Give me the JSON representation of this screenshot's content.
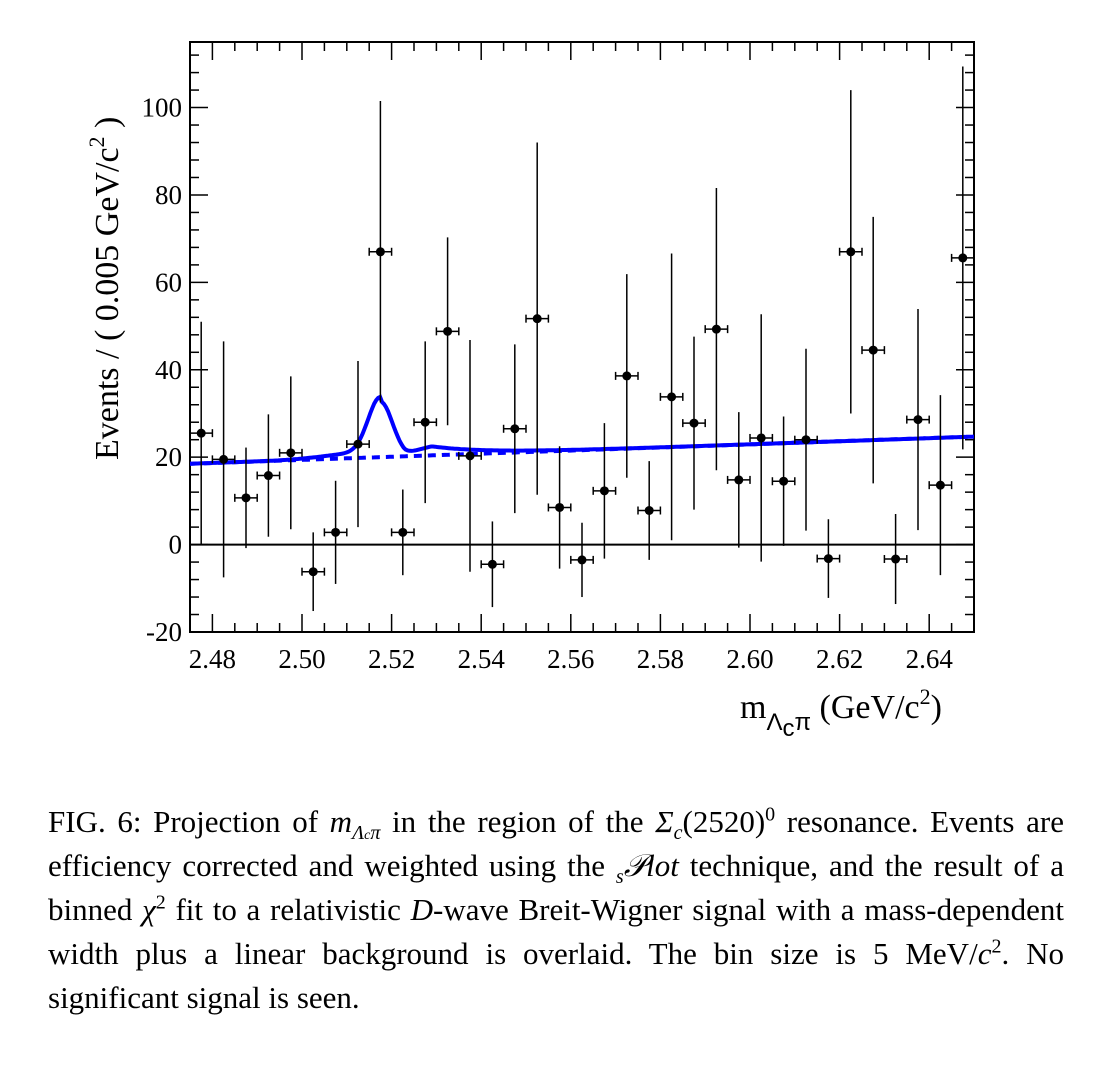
{
  "chart_data": {
    "type": "scatter",
    "ylabel": "Events / ( 0.005 GeV/c",
    "ylabel_sup": "2",
    "ylabel_end": " )",
    "xlabel_m": "m",
    "xlabel_sub": "Λ",
    "xlabel_subsub": "c",
    "xlabel_pi": "π",
    "xlabel_unit": " (GeV/c",
    "xlabel_sup": "2",
    "xlabel_end": ")",
    "xlim": [
      2.475,
      2.65
    ],
    "ylim": [
      -20,
      115
    ],
    "x_ticks": [
      "2.48",
      "2.50",
      "2.52",
      "2.54",
      "2.56",
      "2.58",
      "2.60",
      "2.62",
      "2.64"
    ],
    "x_tick_values": [
      2.48,
      2.5,
      2.52,
      2.54,
      2.56,
      2.58,
      2.6,
      2.62,
      2.64
    ],
    "y_ticks": [
      "-20",
      "0",
      "20",
      "40",
      "60",
      "80",
      "100"
    ],
    "y_tick_values": [
      -20,
      0,
      20,
      40,
      60,
      80,
      100
    ],
    "bin_width": 0.005,
    "points": [
      {
        "x": 2.4775,
        "y": 25.5,
        "err": 25.5
      },
      {
        "x": 2.4825,
        "y": 19.5,
        "err": 27.0
      },
      {
        "x": 2.4875,
        "y": 10.7,
        "err": 11.5
      },
      {
        "x": 2.4925,
        "y": 15.8,
        "err": 14.0
      },
      {
        "x": 2.4975,
        "y": 21.0,
        "err": 17.5
      },
      {
        "x": 2.5025,
        "y": -6.2,
        "err": 9.0
      },
      {
        "x": 2.5075,
        "y": 2.8,
        "err": 11.8
      },
      {
        "x": 2.5125,
        "y": 23.0,
        "err": 19.0
      },
      {
        "x": 2.5175,
        "y": 67.0,
        "err": 34.5
      },
      {
        "x": 2.5225,
        "y": 2.8,
        "err": 9.8
      },
      {
        "x": 2.5275,
        "y": 28.0,
        "err": 18.5
      },
      {
        "x": 2.5325,
        "y": 48.8,
        "err": 21.5
      },
      {
        "x": 2.5375,
        "y": 20.3,
        "err": 26.5
      },
      {
        "x": 2.5425,
        "y": -4.5,
        "err": 9.8
      },
      {
        "x": 2.5475,
        "y": 26.5,
        "err": 19.3
      },
      {
        "x": 2.5525,
        "y": 51.7,
        "err": 40.3
      },
      {
        "x": 2.5575,
        "y": 8.5,
        "err": 14.0
      },
      {
        "x": 2.5625,
        "y": -3.5,
        "err": 8.5
      },
      {
        "x": 2.5675,
        "y": 12.3,
        "err": 15.5
      },
      {
        "x": 2.5725,
        "y": 38.6,
        "err": 23.3
      },
      {
        "x": 2.5775,
        "y": 7.8,
        "err": 11.3
      },
      {
        "x": 2.5825,
        "y": 33.8,
        "err": 32.8
      },
      {
        "x": 2.5875,
        "y": 27.8,
        "err": 19.8
      },
      {
        "x": 2.5925,
        "y": 49.3,
        "err": 32.3
      },
      {
        "x": 2.5975,
        "y": 14.8,
        "err": 15.5
      },
      {
        "x": 2.6025,
        "y": 24.4,
        "err": 28.3
      },
      {
        "x": 2.6075,
        "y": 14.5,
        "err": 14.8
      },
      {
        "x": 2.6125,
        "y": 24.0,
        "err": 20.8
      },
      {
        "x": 2.6175,
        "y": -3.2,
        "err": 9.0
      },
      {
        "x": 2.6225,
        "y": 67.0,
        "err": 37.0
      },
      {
        "x": 2.6275,
        "y": 44.5,
        "err": 30.5
      },
      {
        "x": 2.6325,
        "y": -3.3,
        "err": 10.3
      },
      {
        "x": 2.6375,
        "y": 28.6,
        "err": 25.3
      },
      {
        "x": 2.6425,
        "y": 13.6,
        "err": 20.6
      },
      {
        "x": 2.6475,
        "y": 65.6,
        "err": 43.8
      }
    ],
    "fit_total": {
      "name": "total",
      "color": "#0000ff",
      "style": "solid",
      "background_a": 18.5,
      "background_b": 35.5,
      "signal_mean": 2.5175,
      "signal_sigma": 0.0027,
      "signal_amp": 12.7,
      "tail_a": 3.4,
      "tail_start": 2.523,
      "tail_decay": 0.012
    },
    "fit_background": {
      "name": "background",
      "color": "#0000ff",
      "style": "dashed",
      "y_at_xmin": 18.5,
      "slope": 35.5
    }
  },
  "caption": {
    "fig_label": "FIG. 6:",
    "t1": " Projection of ",
    "m": "m",
    "sub_lambda": "Λ",
    "sub_c": "c",
    "sub_pi": "π",
    "t2": " in the region of the ",
    "sigma": "Σ",
    "sigma_sub": "c",
    "t3": "(2520)",
    "t3_sup": "0",
    "t4": " resonance. Events are efficiency corrected and weighted using the ",
    "splot_s": "s",
    "splot_P": "𝒫",
    "splot_lot": "lot",
    "t5": " technique, and the result of a binned ",
    "chi": "χ",
    "chi_sup": "2",
    "t6": " fit to a relativistic ",
    "dwave": "D",
    "t7": "-wave Breit-Wigner signal with a mass-dependent width plus a linear background is overlaid. The bin size is 5 MeV/",
    "c_it": "c",
    "c_sup": "2",
    "t8": ". No significant signal is seen."
  }
}
